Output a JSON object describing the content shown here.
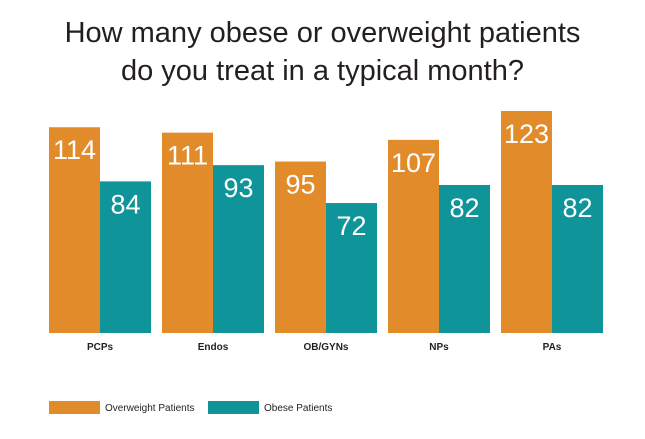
{
  "chart_data": {
    "type": "bar",
    "title": "How many obese or overweight patients do you treat in a typical month?",
    "title_lines": [
      "How many obese or overweight patients",
      "do you treat in a typical month?"
    ],
    "xlabel": "",
    "ylabel": "",
    "categories": [
      "PCPs",
      "Endos",
      "OB/GYNs",
      "NPs",
      "PAs"
    ],
    "series": [
      {
        "name": "Overweight Patients",
        "color": "#e28b2b",
        "values": [
          114,
          111,
          95,
          107,
          123
        ]
      },
      {
        "name": "Obese Patients",
        "color": "#0e9499",
        "values": [
          84,
          93,
          72,
          82,
          82
        ]
      }
    ],
    "ylim": [
      0,
      123
    ],
    "grid": false,
    "legend": "bottom-left"
  }
}
